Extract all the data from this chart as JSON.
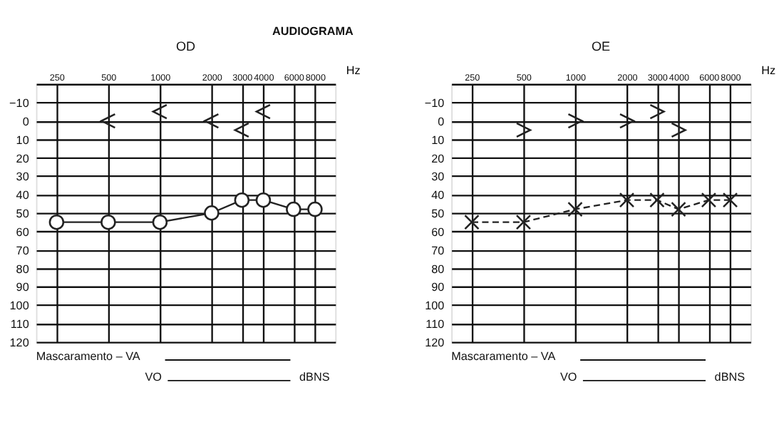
{
  "chart_data": [
    {
      "type": "line",
      "title": "AUDIOGRAMA",
      "subtitle": "OD",
      "xlabel": "Hz",
      "log": "x",
      "xlim": [
        190,
        10500
      ],
      "xticks": [
        250,
        500,
        1000,
        2000,
        3000,
        4000,
        6000,
        8000
      ],
      "ylim": [
        120,
        -20
      ],
      "yticks": [
        {
          "value": -20,
          "label": null
        },
        -10,
        0,
        10,
        20,
        30,
        40,
        50,
        60,
        70,
        80,
        90,
        100,
        110,
        120
      ],
      "grid": true,
      "series": [
        {
          "type": "line",
          "color": "#222222",
          "marker": "circle",
          "line_style": "solid",
          "x": [
            250,
            500,
            1000,
            2000,
            3000,
            4000,
            6000,
            8000
          ],
          "values": [
            55,
            55,
            55,
            50,
            43,
            43,
            48,
            48
          ]
        },
        {
          "type": "scatter",
          "color": "#222222",
          "x": [
            500,
            1000,
            2000,
            3000,
            4000
          ],
          "values": [
            0,
            -5,
            0,
            5,
            -5
          ]
        }
      ],
      "annotations": [
        "Mascaramento – VA",
        "VO",
        "dBNS"
      ]
    },
    {
      "type": "line",
      "subtitle": "OE",
      "xlabel": "Hz",
      "log": "x",
      "xlim": [
        190,
        10500
      ],
      "xticks": [
        250,
        500,
        1000,
        2000,
        3000,
        4000,
        6000,
        8000
      ],
      "ylim": [
        120,
        -20
      ],
      "yticks": [
        {
          "value": -20,
          "label": null
        },
        -10,
        0,
        10,
        20,
        30,
        40,
        50,
        60,
        70,
        80,
        90,
        100,
        110,
        120
      ],
      "grid": true,
      "series": [
        {
          "type": "line",
          "color": "#222222",
          "marker": "cross",
          "line_style": "dashed",
          "x": [
            250,
            500,
            1000,
            2000,
            3000,
            4000,
            6000,
            8000
          ],
          "values": [
            55,
            55,
            48,
            43,
            43,
            48,
            43,
            43
          ]
        },
        {
          "type": "scatter",
          "color": "#222222",
          "x": [
            500,
            1000,
            2000,
            3000,
            4000
          ],
          "values": [
            5,
            0,
            0,
            -5,
            5
          ]
        }
      ],
      "annotations": [
        "Mascaramento – VA",
        "VO",
        "dBNS"
      ]
    }
  ]
}
